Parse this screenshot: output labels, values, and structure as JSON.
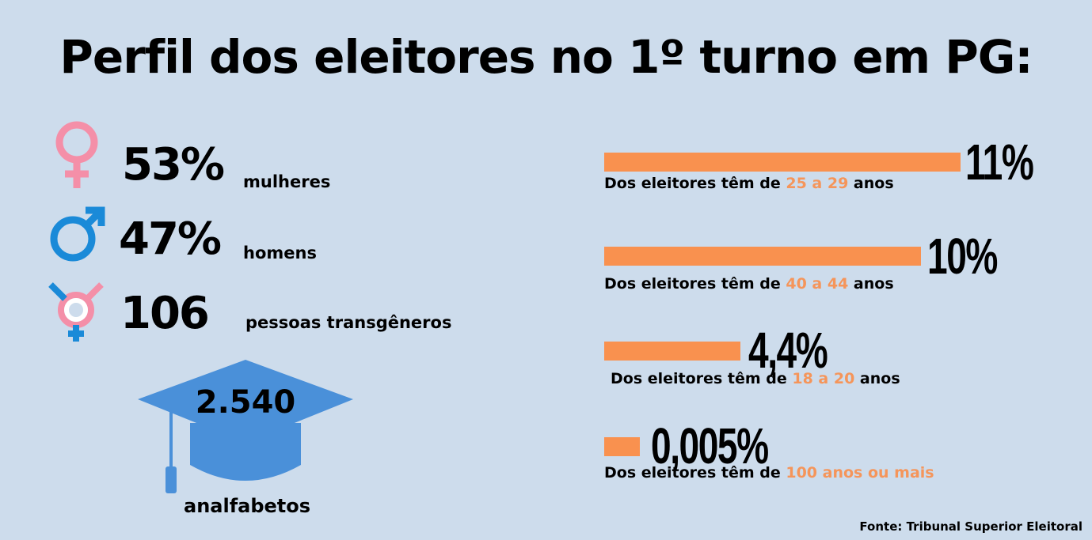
{
  "title": "Perfil dos eleitores no 1º turno em PG:",
  "gender": [
    {
      "value": "53%",
      "label": "mulheres"
    },
    {
      "value": "47%",
      "label": "homens"
    },
    {
      "value": "106",
      "label": "pessoas transgêneros"
    }
  ],
  "illiterate": {
    "value": "2.540",
    "label": "analfabetos"
  },
  "ages": [
    {
      "value": "11%",
      "prefix": "Dos eleitores têm de",
      "range": "25 a 29",
      "suffix": "anos"
    },
    {
      "value": "10%",
      "prefix": "Dos eleitores têm de",
      "range": "40 a 44",
      "suffix": "anos"
    },
    {
      "value": "4,4%",
      "prefix": "Dos eleitores têm de",
      "range": "18 a 20",
      "suffix": "anos"
    },
    {
      "value": "0,005%",
      "prefix": "Dos eleitores têm de",
      "range": "100 anos ou mais"
    }
  ],
  "source": "Fonte: Tribunal Superior Eleitoral"
}
